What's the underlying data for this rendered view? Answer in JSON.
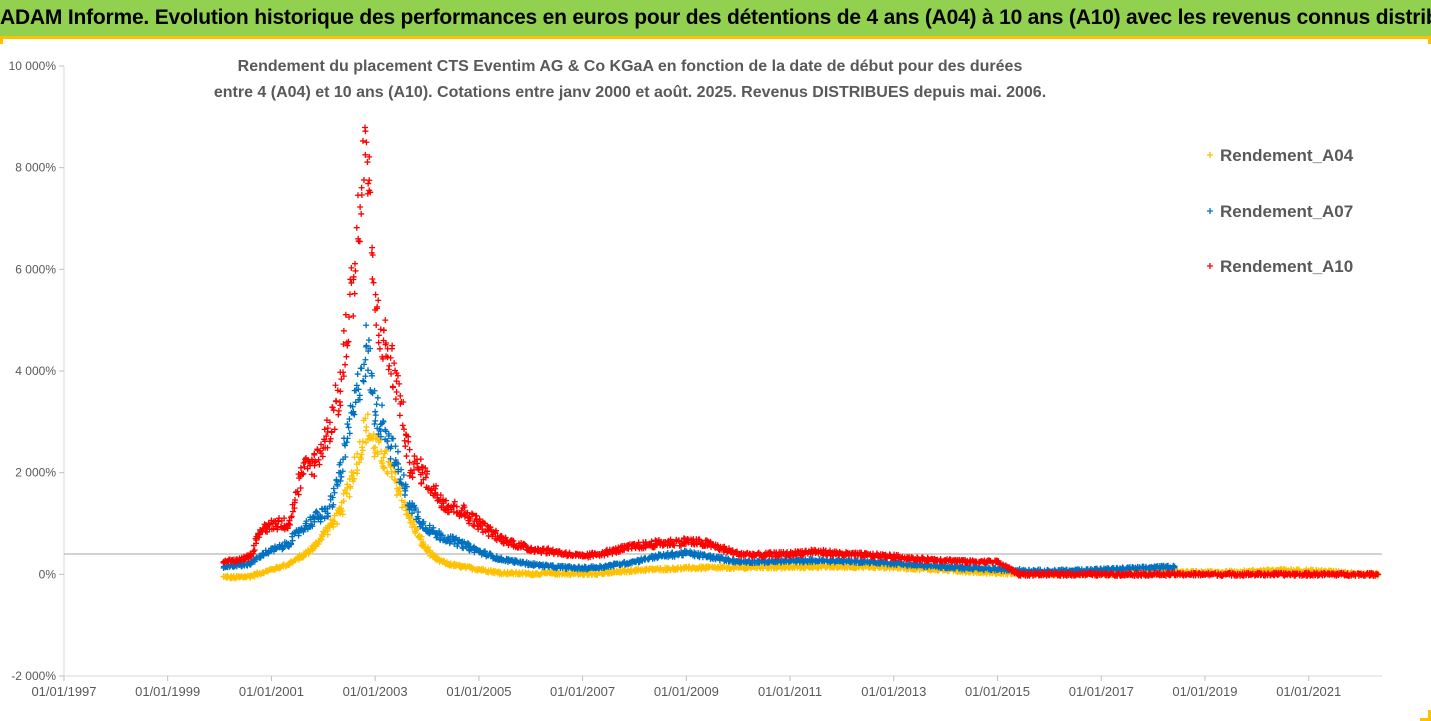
{
  "banner": "ADAM Informe. Evolution historique des performances en euros pour des détentions de 4 ans (A04) à 10 ans (A10) avec les revenus connus distribués",
  "chart_data": {
    "type": "scatter",
    "title": "",
    "subtitle_line1": "Rendement du placement CTS Eventim AG & Co KGaA en fonction de la date de début pour des durées",
    "subtitle_line2": "entre 4 (A04) et 10 ans (A10). Cotations entre janv 2000 et août. 2025. Revenus DISTRIBUES depuis mai. 2006.",
    "xlabel": "",
    "ylabel": "",
    "xlim": [
      "1997-01-01",
      "2022-06-01"
    ],
    "ylim": [
      -2000,
      10000
    ],
    "y_unit": "%",
    "x_ticks": [
      "01/01/1997",
      "01/01/1999",
      "01/01/2001",
      "01/01/2003",
      "01/01/2005",
      "01/01/2007",
      "01/01/2009",
      "01/01/2011",
      "01/01/2013",
      "01/01/2015",
      "01/01/2017",
      "01/01/2019",
      "01/01/2021"
    ],
    "y_ticks": [
      "-2 000%",
      "0%",
      "2 000%",
      "4 000%",
      "6 000%",
      "8 000%",
      "10 000%"
    ],
    "y_tick_values": [
      -2000,
      0,
      2000,
      4000,
      6000,
      8000,
      10000
    ],
    "reference_line_y": 400,
    "grid": false,
    "legend_position": "right",
    "marker": "+",
    "series": [
      {
        "name": "Rendement_A04",
        "color": "#ffc000",
        "points": [
          [
            "2000-02-01",
            -50
          ],
          [
            "2000-05-01",
            -60
          ],
          [
            "2000-08-01",
            -40
          ],
          [
            "2000-11-01",
            40
          ],
          [
            "2001-02-01",
            120
          ],
          [
            "2001-05-01",
            200
          ],
          [
            "2001-08-01",
            350
          ],
          [
            "2001-11-01",
            550
          ],
          [
            "2002-02-01",
            900
          ],
          [
            "2002-05-01",
            1200
          ],
          [
            "2002-08-01",
            2000
          ],
          [
            "2002-11-01",
            2900
          ],
          [
            "2003-01-01",
            2500
          ],
          [
            "2003-03-01",
            2300
          ],
          [
            "2003-06-01",
            1800
          ],
          [
            "2003-09-01",
            1100
          ],
          [
            "2003-12-01",
            600
          ],
          [
            "2004-03-01",
            300
          ],
          [
            "2004-06-01",
            200
          ],
          [
            "2004-09-01",
            150
          ],
          [
            "2005-01-01",
            100
          ],
          [
            "2005-06-01",
            30
          ],
          [
            "2006-01-01",
            10
          ],
          [
            "2006-06-01",
            20
          ],
          [
            "2007-01-01",
            10
          ],
          [
            "2007-06-01",
            20
          ],
          [
            "2008-01-01",
            80
          ],
          [
            "2008-06-01",
            100
          ],
          [
            "2009-01-01",
            120
          ],
          [
            "2009-06-01",
            130
          ],
          [
            "2010-01-01",
            130
          ],
          [
            "2010-06-01",
            140
          ],
          [
            "2011-01-01",
            140
          ],
          [
            "2011-06-01",
            150
          ],
          [
            "2012-01-01",
            150
          ],
          [
            "2012-06-01",
            150
          ],
          [
            "2013-01-01",
            140
          ],
          [
            "2013-06-01",
            120
          ],
          [
            "2014-01-01",
            90
          ],
          [
            "2014-06-01",
            60
          ],
          [
            "2015-01-01",
            30
          ],
          [
            "2015-06-01",
            20
          ],
          [
            "2016-01-01",
            10
          ],
          [
            "2016-06-01",
            10
          ],
          [
            "2017-01-01",
            10
          ],
          [
            "2017-06-01",
            10
          ],
          [
            "2018-01-01",
            20
          ],
          [
            "2018-06-01",
            30
          ],
          [
            "2019-01-01",
            40
          ],
          [
            "2019-06-01",
            40
          ],
          [
            "2020-01-01",
            60
          ],
          [
            "2020-06-01",
            80
          ],
          [
            "2021-01-01",
            70
          ],
          [
            "2021-06-01",
            50
          ],
          [
            "2022-01-01",
            10
          ],
          [
            "2022-05-01",
            0
          ]
        ]
      },
      {
        "name": "Rendement_A07",
        "color": "#0070c0",
        "points": [
          [
            "2000-02-01",
            150
          ],
          [
            "2000-05-01",
            180
          ],
          [
            "2000-08-01",
            200
          ],
          [
            "2000-11-01",
            400
          ],
          [
            "2001-02-01",
            500
          ],
          [
            "2001-05-01",
            600
          ],
          [
            "2001-08-01",
            900
          ],
          [
            "2001-11-01",
            1100
          ],
          [
            "2002-02-01",
            1200
          ],
          [
            "2002-05-01",
            2000
          ],
          [
            "2002-08-01",
            3200
          ],
          [
            "2002-11-01",
            4500
          ],
          [
            "2003-01-01",
            3200
          ],
          [
            "2003-03-01",
            3000
          ],
          [
            "2003-06-01",
            2200
          ],
          [
            "2003-09-01",
            1400
          ],
          [
            "2003-12-01",
            1000
          ],
          [
            "2004-03-01",
            800
          ],
          [
            "2004-06-01",
            700
          ],
          [
            "2004-09-01",
            600
          ],
          [
            "2005-01-01",
            450
          ],
          [
            "2005-06-01",
            300
          ],
          [
            "2006-01-01",
            200
          ],
          [
            "2006-06-01",
            150
          ],
          [
            "2007-01-01",
            120
          ],
          [
            "2007-06-01",
            150
          ],
          [
            "2008-01-01",
            250
          ],
          [
            "2008-06-01",
            350
          ],
          [
            "2009-01-01",
            420
          ],
          [
            "2009-06-01",
            350
          ],
          [
            "2010-01-01",
            250
          ],
          [
            "2010-06-01",
            250
          ],
          [
            "2011-01-01",
            260
          ],
          [
            "2011-06-01",
            270
          ],
          [
            "2012-01-01",
            260
          ],
          [
            "2012-06-01",
            250
          ],
          [
            "2013-01-01",
            220
          ],
          [
            "2013-06-01",
            180
          ],
          [
            "2014-01-01",
            150
          ],
          [
            "2014-06-01",
            120
          ],
          [
            "2015-01-01",
            100
          ],
          [
            "2015-06-01",
            80
          ],
          [
            "2016-01-01",
            60
          ],
          [
            "2016-06-01",
            70
          ],
          [
            "2017-01-01",
            90
          ],
          [
            "2017-06-01",
            110
          ],
          [
            "2018-01-01",
            130
          ],
          [
            "2018-06-01",
            150
          ]
        ]
      },
      {
        "name": "Rendement_A10",
        "color": "#ff0000",
        "points": [
          [
            "2000-02-01",
            250
          ],
          [
            "2000-05-01",
            280
          ],
          [
            "2000-08-01",
            350
          ],
          [
            "2000-11-01",
            900
          ],
          [
            "2001-02-01",
            1000
          ],
          [
            "2001-05-01",
            1000
          ],
          [
            "2001-08-01",
            2000
          ],
          [
            "2001-11-01",
            2200
          ],
          [
            "2002-02-01",
            2800
          ],
          [
            "2002-05-01",
            3600
          ],
          [
            "2002-08-01",
            5800
          ],
          [
            "2002-11-01",
            8500
          ],
          [
            "2003-01-01",
            5200
          ],
          [
            "2003-03-01",
            4600
          ],
          [
            "2003-06-01",
            3800
          ],
          [
            "2003-09-01",
            2200
          ],
          [
            "2003-12-01",
            2000
          ],
          [
            "2004-03-01",
            1600
          ],
          [
            "2004-06-01",
            1350
          ],
          [
            "2004-09-01",
            1250
          ],
          [
            "2005-01-01",
            1000
          ],
          [
            "2005-06-01",
            700
          ],
          [
            "2006-01-01",
            500
          ],
          [
            "2006-06-01",
            450
          ],
          [
            "2007-01-01",
            350
          ],
          [
            "2007-06-01",
            420
          ],
          [
            "2008-01-01",
            550
          ],
          [
            "2008-06-01",
            600
          ],
          [
            "2009-01-01",
            650
          ],
          [
            "2009-06-01",
            600
          ],
          [
            "2010-01-01",
            400
          ],
          [
            "2010-06-01",
            380
          ],
          [
            "2011-01-01",
            400
          ],
          [
            "2011-06-01",
            450
          ],
          [
            "2012-01-01",
            400
          ],
          [
            "2012-06-01",
            380
          ],
          [
            "2013-01-01",
            350
          ],
          [
            "2013-06-01",
            300
          ],
          [
            "2014-01-01",
            280
          ],
          [
            "2014-06-01",
            250
          ],
          [
            "2015-01-01",
            250
          ],
          [
            "2015-06-01",
            0
          ],
          [
            "2016-01-01",
            0
          ],
          [
            "2016-06-01",
            0
          ],
          [
            "2017-01-01",
            0
          ],
          [
            "2017-06-01",
            0
          ],
          [
            "2018-01-01",
            0
          ],
          [
            "2018-06-01",
            0
          ],
          [
            "2019-01-01",
            0
          ],
          [
            "2019-06-01",
            0
          ],
          [
            "2020-01-01",
            0
          ],
          [
            "2020-06-01",
            0
          ],
          [
            "2021-01-01",
            0
          ],
          [
            "2021-06-01",
            0
          ],
          [
            "2022-01-01",
            0
          ],
          [
            "2022-05-01",
            0
          ]
        ]
      }
    ]
  }
}
